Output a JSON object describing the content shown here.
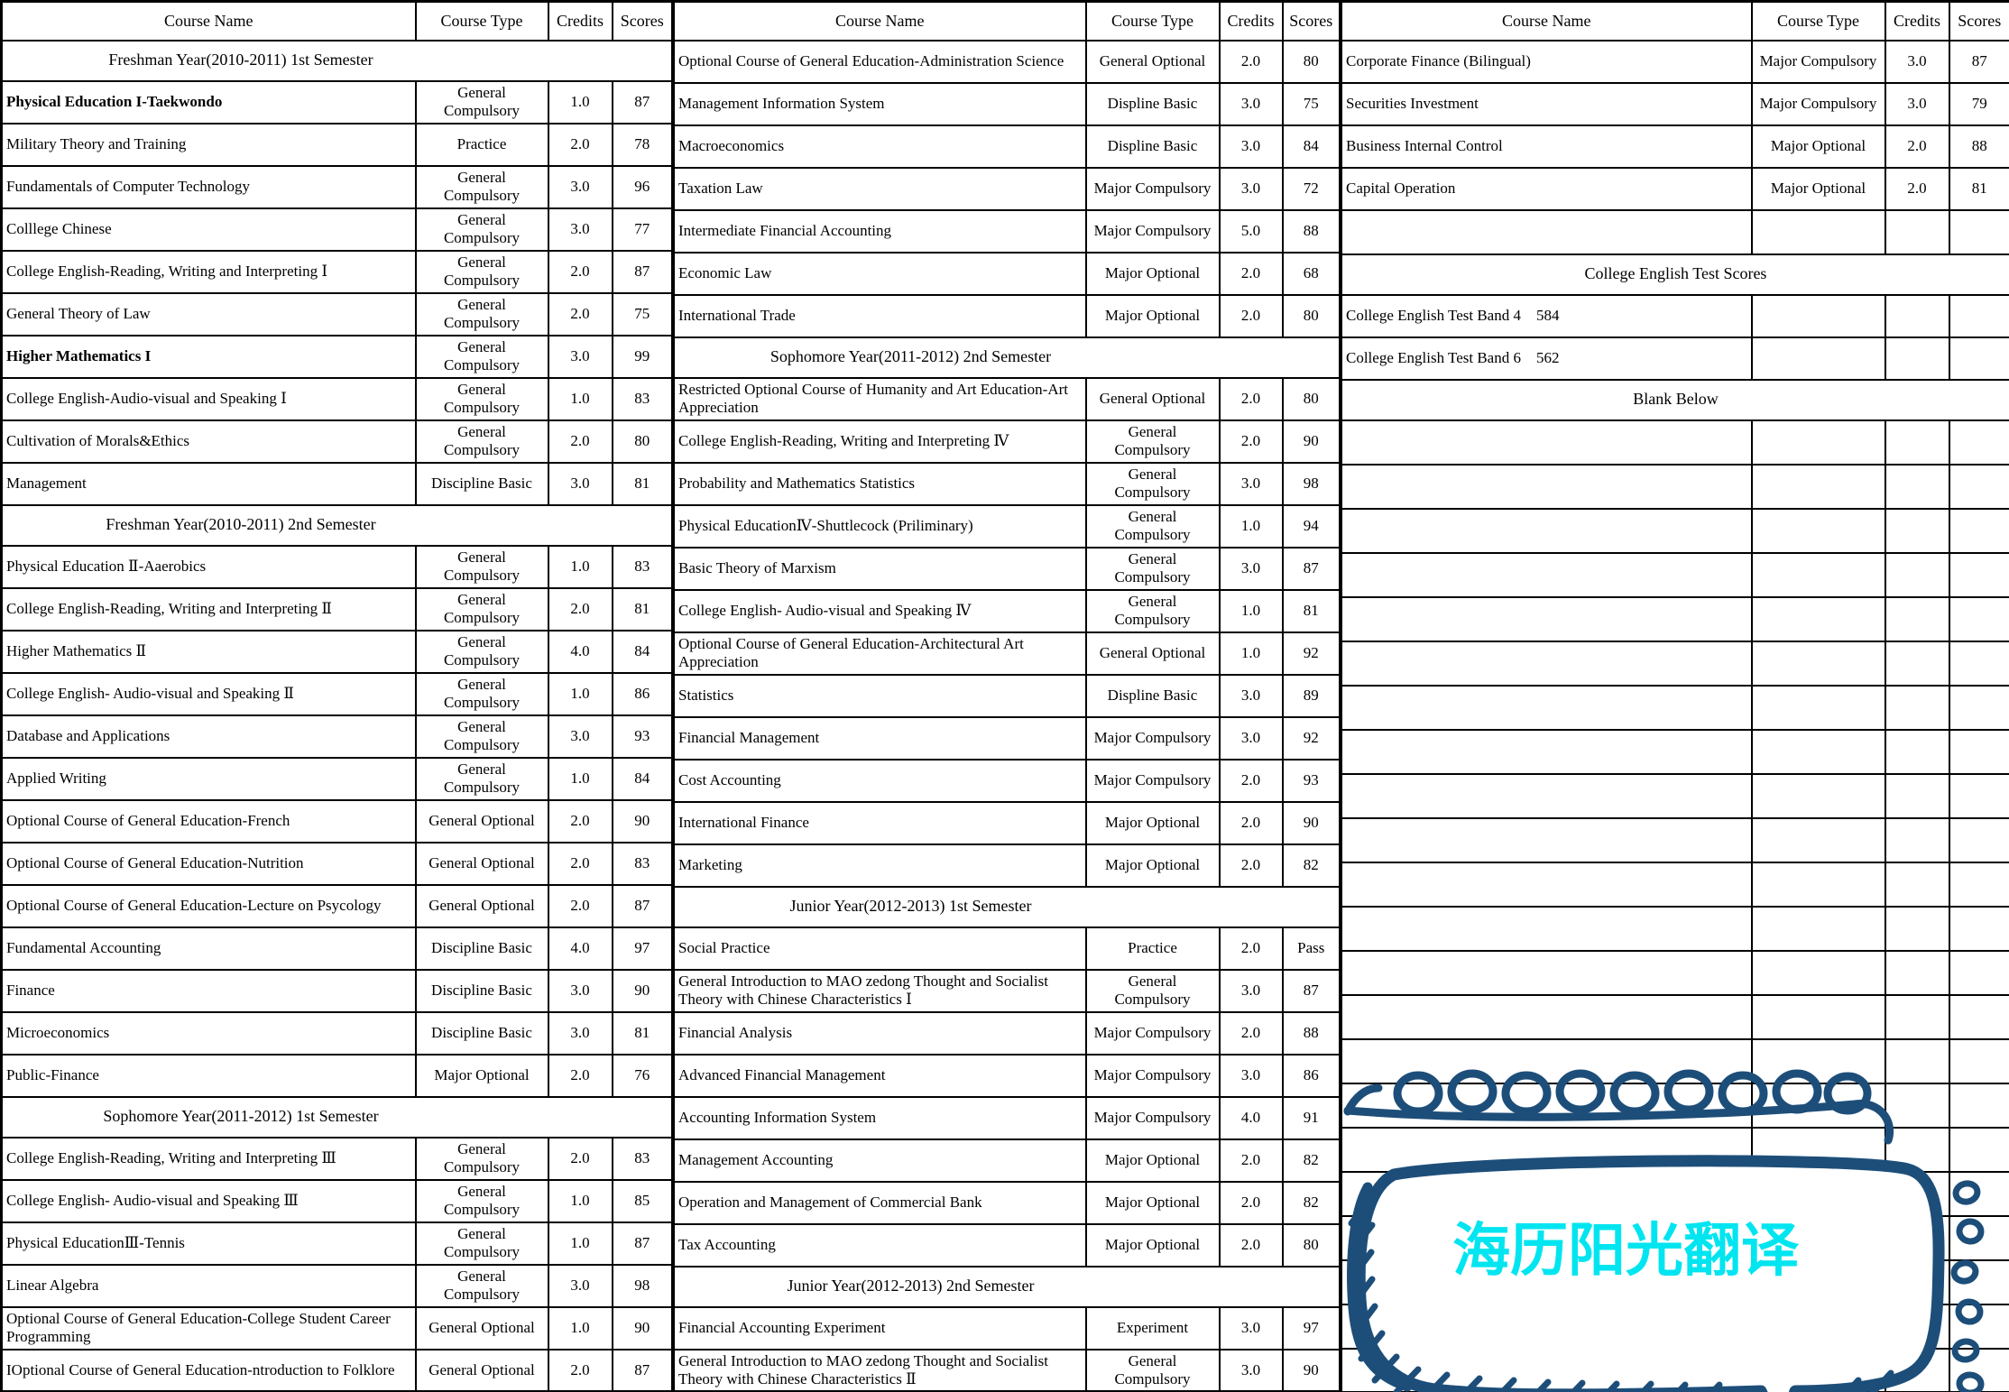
{
  "columns": [
    "Course Name",
    "Course Type",
    "Credits",
    "Scores"
  ],
  "watermark": {
    "text": "海历阳光翻译",
    "sketch_color": "#1d4e79",
    "text_color": "#00e5f0"
  },
  "groups": [
    {
      "position": "left",
      "rows": [
        {
          "kind": "section",
          "label": "Freshman Year(2010-2011) 1st Semester"
        },
        {
          "kind": "course",
          "name": "Physical Education I-Taekwondo",
          "type": "General Compulsory",
          "credits": "1.0",
          "score": "87",
          "bold": true
        },
        {
          "kind": "course",
          "name": "Military Theory and Training",
          "type": "Practice",
          "credits": "2.0",
          "score": "78"
        },
        {
          "kind": "course",
          "name": "Fundamentals of Computer Technology",
          "type": "General Compulsory",
          "credits": "3.0",
          "score": "96"
        },
        {
          "kind": "course",
          "name": "Colllege Chinese",
          "type": "General Compulsory",
          "credits": "3.0",
          "score": "77"
        },
        {
          "kind": "course",
          "name": "College English-Reading, Writing and Interpreting Ⅰ",
          "type": "General Compulsory",
          "credits": "2.0",
          "score": "87"
        },
        {
          "kind": "course",
          "name": "General Theory of Law",
          "type": "General Compulsory",
          "credits": "2.0",
          "score": "75"
        },
        {
          "kind": "course",
          "name": "Higher Mathematics I",
          "type": "General Compulsory",
          "credits": "3.0",
          "score": "99",
          "bold": true
        },
        {
          "kind": "course",
          "name": "College English-Audio-visual and Speaking Ⅰ",
          "type": "General Compulsory",
          "credits": "1.0",
          "score": "83"
        },
        {
          "kind": "course",
          "name": "Cultivation of Morals&Ethics",
          "type": "General Compulsory",
          "credits": "2.0",
          "score": "80"
        },
        {
          "kind": "course",
          "name": "Management",
          "type": "Discipline Basic",
          "credits": "3.0",
          "score": "81"
        },
        {
          "kind": "section",
          "label": "Freshman Year(2010-2011) 2nd Semester"
        },
        {
          "kind": "course",
          "name": "Physical Education Ⅱ-Aaerobics",
          "type": "General Compulsory",
          "credits": "1.0",
          "score": "83"
        },
        {
          "kind": "course",
          "name": "College English-Reading, Writing and Interpreting Ⅱ",
          "type": "General Compulsory",
          "credits": "2.0",
          "score": "81"
        },
        {
          "kind": "course",
          "name": "Higher Mathematics Ⅱ",
          "type": "General Compulsory",
          "credits": "4.0",
          "score": "84"
        },
        {
          "kind": "course",
          "name": "College English- Audio-visual and Speaking Ⅱ",
          "type": "General Compulsory",
          "credits": "1.0",
          "score": "86"
        },
        {
          "kind": "course",
          "name": "Database and Applications",
          "type": "General Compulsory",
          "credits": "3.0",
          "score": "93"
        },
        {
          "kind": "course",
          "name": "Applied Writing",
          "type": "General Compulsory",
          "credits": "1.0",
          "score": "84"
        },
        {
          "kind": "course",
          "name": "Optional Course of General Education-French",
          "type": "General Optional",
          "credits": "2.0",
          "score": "90"
        },
        {
          "kind": "course",
          "name": "Optional Course of General Education-Nutrition",
          "type": "General Optional",
          "credits": "2.0",
          "score": "83"
        },
        {
          "kind": "course",
          "name": "Optional Course of General Education-Lecture on Psycology",
          "type": "General Optional",
          "credits": "2.0",
          "score": "87"
        },
        {
          "kind": "course",
          "name": "Fundamental  Accounting",
          "type": "Discipline Basic",
          "credits": "4.0",
          "score": "97"
        },
        {
          "kind": "course",
          "name": "Finance",
          "type": "Discipline Basic",
          "credits": "3.0",
          "score": "90"
        },
        {
          "kind": "course",
          "name": "Microeconomics",
          "type": "Discipline Basic",
          "credits": "3.0",
          "score": "81"
        },
        {
          "kind": "course",
          "name": "Public-Finance",
          "type": "Major Optional",
          "credits": "2.0",
          "score": "76"
        },
        {
          "kind": "section",
          "label": "Sophomore Year(2011-2012) 1st Semester"
        },
        {
          "kind": "course",
          "name": "College English-Reading, Writing and Interpreting Ⅲ",
          "type": "General Compulsory",
          "credits": "2.0",
          "score": "83"
        },
        {
          "kind": "course",
          "name": "College English- Audio-visual and Speaking Ⅲ",
          "type": "General Compulsory",
          "credits": "1.0",
          "score": "85"
        },
        {
          "kind": "course",
          "name": "Physical EducationⅢ-Tennis",
          "type": "General Compulsory",
          "credits": "1.0",
          "score": "87"
        },
        {
          "kind": "course",
          "name": "Linear Algebra",
          "type": "General Compulsory",
          "credits": "3.0",
          "score": "98"
        },
        {
          "kind": "course",
          "name": "Optional Course of General Education-College Student Career Programming",
          "type": "General Optional",
          "credits": "1.0",
          "score": "90"
        },
        {
          "kind": "course",
          "name": "IOptional Course of General Education-ntroduction to Folklore",
          "type": "General Optional",
          "credits": "2.0",
          "score": "87"
        }
      ]
    },
    {
      "position": "middle",
      "rows": [
        {
          "kind": "course",
          "name": "Optional Course of General Education-Administration Science",
          "type": "General Optional",
          "credits": "2.0",
          "score": "80"
        },
        {
          "kind": "course",
          "name": "Management Information System",
          "type": "Displine Basic",
          "credits": "3.0",
          "score": "75"
        },
        {
          "kind": "course",
          "name": "Macroeconomics",
          "type": "Displine Basic",
          "credits": "3.0",
          "score": "84"
        },
        {
          "kind": "course",
          "name": "Taxation Law",
          "type": "Major Compulsory",
          "credits": "3.0",
          "score": "72"
        },
        {
          "kind": "course",
          "name": "Intermediate Financial Accounting",
          "type": "Major Compulsory",
          "credits": "5.0",
          "score": "88"
        },
        {
          "kind": "course",
          "name": "Economic Law",
          "type": "Major Optional",
          "credits": "2.0",
          "score": "68"
        },
        {
          "kind": "course",
          "name": "International Trade",
          "type": "Major Optional",
          "credits": "2.0",
          "score": "80"
        },
        {
          "kind": "section",
          "label": "Sophomore Year(2011-2012) 2nd Semester"
        },
        {
          "kind": "course",
          "name": "Restricted Optional Course of  Humanity and Art Education-Art Appreciation",
          "type": "General Optional",
          "credits": "2.0",
          "score": "80"
        },
        {
          "kind": "course",
          "name": "College English-Reading, Writing and Interpreting Ⅳ",
          "type": "General Compulsory",
          "credits": "2.0",
          "score": "90"
        },
        {
          "kind": "course",
          "name": "Probability and Mathematics Statistics",
          "type": "General Compulsory",
          "credits": "3.0",
          "score": "98"
        },
        {
          "kind": "course",
          "name": "Physical EducationⅣ-Shuttlecock (Priliminary)",
          "type": "General Compulsory",
          "credits": "1.0",
          "score": "94"
        },
        {
          "kind": "course",
          "name": "Basic Theory of Marxism",
          "type": "General Compulsory",
          "credits": "3.0",
          "score": "87"
        },
        {
          "kind": "course",
          "name": "College English- Audio-visual and Speaking Ⅳ",
          "type": "General Compulsory",
          "credits": "1.0",
          "score": "81"
        },
        {
          "kind": "course",
          "name": "Optional Course of General Education-Architectural Art Appreciation",
          "type": "General Optional",
          "credits": "1.0",
          "score": "92"
        },
        {
          "kind": "course",
          "name": "Statistics",
          "type": "Displine Basic",
          "credits": "3.0",
          "score": "89"
        },
        {
          "kind": "course",
          "name": "Financial Management",
          "type": "Major Compulsory",
          "credits": "3.0",
          "score": "92"
        },
        {
          "kind": "course",
          "name": "Cost Accounting",
          "type": "Major Compulsory",
          "credits": "2.0",
          "score": "93"
        },
        {
          "kind": "course",
          "name": "International Finance",
          "type": "Major Optional",
          "credits": "2.0",
          "score": "90"
        },
        {
          "kind": "course",
          "name": "Marketing",
          "type": "Major Optional",
          "credits": "2.0",
          "score": "82"
        },
        {
          "kind": "section",
          "label": "Junior Year(2012-2013) 1st Semester"
        },
        {
          "kind": "course",
          "name": "Social Practice",
          "type": "Practice",
          "credits": "2.0",
          "score": "Pass"
        },
        {
          "kind": "course",
          "name": "General Introduction to MAO zedong Thought and Socialist Theory with Chinese Characteristics Ⅰ",
          "type": "General Compulsory",
          "credits": "3.0",
          "score": "87"
        },
        {
          "kind": "course",
          "name": "Financial Analysis",
          "type": "Major Compulsory",
          "credits": "2.0",
          "score": "88"
        },
        {
          "kind": "course",
          "name": "Advanced Financial Management",
          "type": "Major Compulsory",
          "credits": "3.0",
          "score": "86"
        },
        {
          "kind": "course",
          "name": "Accounting Information System",
          "type": "Major Compulsory",
          "credits": "4.0",
          "score": "91"
        },
        {
          "kind": "course",
          "name": "Management Accounting",
          "type": "Major Optional",
          "credits": "2.0",
          "score": "82"
        },
        {
          "kind": "course",
          "name": "Operation and Management of Commercial Bank",
          "type": "Major Optional",
          "credits": "2.0",
          "score": "82"
        },
        {
          "kind": "course",
          "name": "Tax Accounting",
          "type": "Major Optional",
          "credits": "2.0",
          "score": "80"
        },
        {
          "kind": "section",
          "label": "Junior Year(2012-2013) 2nd Semester"
        },
        {
          "kind": "course",
          "name": "Financial Accounting Experiment",
          "type": "Experiment",
          "credits": "3.0",
          "score": "97"
        },
        {
          "kind": "course",
          "name": "General Introduction to MAO zedong Thought and Socialist Theory with Chinese Characteristics Ⅱ",
          "type": "General Compulsory",
          "credits": "3.0",
          "score": "90"
        }
      ]
    },
    {
      "position": "right",
      "rows": [
        {
          "kind": "course",
          "name": "Corporate Finance (Bilingual)",
          "type": "Major Compulsory",
          "credits": "3.0",
          "score": "87"
        },
        {
          "kind": "course",
          "name": "Securities Investment",
          "type": "Major Compulsory",
          "credits": "3.0",
          "score": "79"
        },
        {
          "kind": "course",
          "name": "Business Internal Control",
          "type": "Major Optional",
          "credits": "2.0",
          "score": "88"
        },
        {
          "kind": "course",
          "name": "Capital Operation",
          "type": "Major Optional",
          "credits": "2.0",
          "score": "81"
        },
        {
          "kind": "empty"
        },
        {
          "kind": "section",
          "label": "College English Test Scores"
        },
        {
          "kind": "course",
          "name": "College English Test Band 4    584",
          "type": "",
          "credits": "",
          "score": ""
        },
        {
          "kind": "course",
          "name": "College English Test Band 6    562",
          "type": "",
          "credits": "",
          "score": ""
        },
        {
          "kind": "section",
          "label": "Blank Below"
        },
        {
          "kind": "empty",
          "repeat": 22
        }
      ]
    }
  ]
}
